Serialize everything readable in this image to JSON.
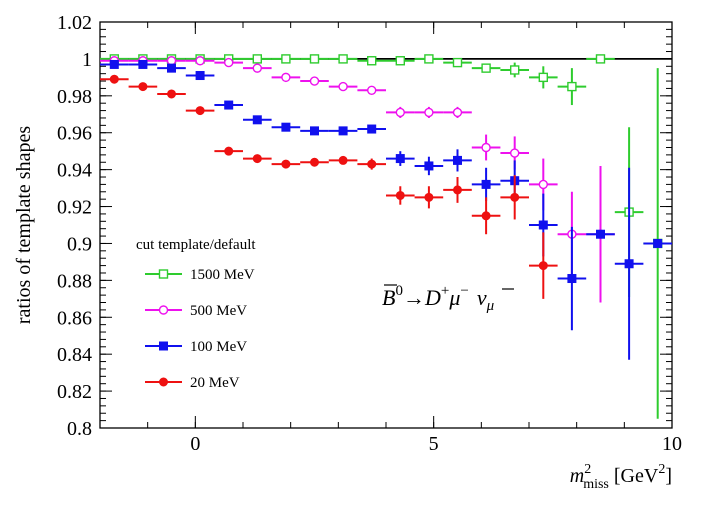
{
  "chart_data": {
    "type": "scatter",
    "title": "",
    "ylabel": "ratios of template shapes",
    "xlabel": {
      "main": "m",
      "sup": "2",
      "sub": "miss",
      "unit": "[GeV",
      "unit_sup": "2",
      "unit_close": "]"
    },
    "xlim": [
      -2,
      10
    ],
    "ylim": [
      0.8,
      1.02
    ],
    "x_ticks": [
      0,
      5,
      10
    ],
    "x_tick_labels": [
      "0",
      "5",
      "10"
    ],
    "y_ticks": [
      0.8,
      0.82,
      0.84,
      0.86,
      0.88,
      0.9,
      0.92,
      0.94,
      0.96,
      0.98,
      1,
      1.02
    ],
    "y_tick_labels": [
      "0.8",
      "0.82",
      "0.84",
      "0.86",
      "0.88",
      "0.9",
      "0.92",
      "0.94",
      "0.96",
      "0.98",
      "1",
      "1.02"
    ],
    "reference_line": 1,
    "legend_title": "cut template/default",
    "annotation": {
      "B": "B",
      "B_sup": "0",
      "arrow": "→",
      "D": "D",
      "D_sup": "+",
      "mu": "μ",
      "mu_sup": "−",
      "nu": "ν",
      "nu_sub": "μ"
    },
    "series": [
      {
        "name": "1500 MeV",
        "color": "#2ecc2e",
        "marker": "open-square",
        "points": [
          {
            "x": -1.7,
            "xerr": 0.3,
            "y": 1.0,
            "yerr": 0.0
          },
          {
            "x": -1.1,
            "xerr": 0.3,
            "y": 1.0,
            "yerr": 0.0
          },
          {
            "x": -0.5,
            "xerr": 0.3,
            "y": 1.0,
            "yerr": 0.0
          },
          {
            "x": 0.1,
            "xerr": 0.3,
            "y": 1.0,
            "yerr": 0.0
          },
          {
            "x": 0.7,
            "xerr": 0.3,
            "y": 1.0,
            "yerr": 0.0
          },
          {
            "x": 1.3,
            "xerr": 0.3,
            "y": 1.0,
            "yerr": 0.0
          },
          {
            "x": 1.9,
            "xerr": 0.3,
            "y": 1.0,
            "yerr": 0.0
          },
          {
            "x": 2.5,
            "xerr": 0.3,
            "y": 1.0,
            "yerr": 0.0
          },
          {
            "x": 3.1,
            "xerr": 0.3,
            "y": 1.0,
            "yerr": 0.0
          },
          {
            "x": 3.7,
            "xerr": 0.3,
            "y": 0.999,
            "yerr": 0.001
          },
          {
            "x": 4.3,
            "xerr": 0.3,
            "y": 0.999,
            "yerr": 0.001
          },
          {
            "x": 4.9,
            "xerr": 0.3,
            "y": 1.0,
            "yerr": 0.001
          },
          {
            "x": 5.5,
            "xerr": 0.3,
            "y": 0.998,
            "yerr": 0.002
          },
          {
            "x": 6.1,
            "xerr": 0.3,
            "y": 0.995,
            "yerr": 0.002
          },
          {
            "x": 6.7,
            "xerr": 0.3,
            "y": 0.994,
            "yerr": 0.004
          },
          {
            "x": 7.3,
            "xerr": 0.3,
            "y": 0.99,
            "yerr": 0.006
          },
          {
            "x": 7.9,
            "xerr": 0.3,
            "y": 0.985,
            "yerr": 0.01
          },
          {
            "x": 8.5,
            "xerr": 0.3,
            "y": 1.0,
            "yerr": 0.0
          },
          {
            "x": 9.1,
            "xerr": 0.3,
            "y": 0.917,
            "yerr": 0.046
          },
          {
            "x": 9.7,
            "xerr": 0.3,
            "y": 0.9,
            "yerr": 0.095
          }
        ]
      },
      {
        "name": "500 MeV",
        "color": "#ee11ee",
        "marker": "open-circle",
        "points": [
          {
            "x": -1.7,
            "xerr": 0.3,
            "y": 0.999,
            "yerr": 0.0
          },
          {
            "x": -1.1,
            "xerr": 0.3,
            "y": 0.999,
            "yerr": 0.0
          },
          {
            "x": -0.5,
            "xerr": 0.3,
            "y": 0.999,
            "yerr": 0.0
          },
          {
            "x": 0.1,
            "xerr": 0.3,
            "y": 0.999,
            "yerr": 0.0
          },
          {
            "x": 0.7,
            "xerr": 0.3,
            "y": 0.998,
            "yerr": 0.0
          },
          {
            "x": 1.3,
            "xerr": 0.3,
            "y": 0.995,
            "yerr": 0.0
          },
          {
            "x": 1.9,
            "xerr": 0.3,
            "y": 0.99,
            "yerr": 0.0
          },
          {
            "x": 2.5,
            "xerr": 0.3,
            "y": 0.988,
            "yerr": 0.0
          },
          {
            "x": 3.1,
            "xerr": 0.3,
            "y": 0.985,
            "yerr": 0.0
          },
          {
            "x": 3.7,
            "xerr": 0.3,
            "y": 0.983,
            "yerr": 0.0
          },
          {
            "x": 4.3,
            "xerr": 0.3,
            "y": 0.971,
            "yerr": 0.003
          },
          {
            "x": 4.9,
            "xerr": 0.3,
            "y": 0.971,
            "yerr": 0.003
          },
          {
            "x": 5.5,
            "xerr": 0.3,
            "y": 0.971,
            "yerr": 0.003
          },
          {
            "x": 6.1,
            "xerr": 0.3,
            "y": 0.952,
            "yerr": 0.007
          },
          {
            "x": 6.7,
            "xerr": 0.3,
            "y": 0.949,
            "yerr": 0.009
          },
          {
            "x": 7.3,
            "xerr": 0.3,
            "y": 0.932,
            "yerr": 0.014
          },
          {
            "x": 7.9,
            "xerr": 0.3,
            "y": 0.905,
            "yerr": 0.023
          },
          {
            "x": 8.5,
            "xerr": 0.3,
            "y": 0.905,
            "yerr": 0.037
          }
        ]
      },
      {
        "name": "100 MeV",
        "color": "#1010ee",
        "marker": "filled-square",
        "points": [
          {
            "x": -1.7,
            "xerr": 0.3,
            "y": 0.997,
            "yerr": 0.0
          },
          {
            "x": -1.1,
            "xerr": 0.3,
            "y": 0.997,
            "yerr": 0.0
          },
          {
            "x": -0.5,
            "xerr": 0.3,
            "y": 0.995,
            "yerr": 0.0
          },
          {
            "x": 0.1,
            "xerr": 0.3,
            "y": 0.991,
            "yerr": 0.0
          },
          {
            "x": 0.7,
            "xerr": 0.3,
            "y": 0.975,
            "yerr": 0.0
          },
          {
            "x": 1.3,
            "xerr": 0.3,
            "y": 0.967,
            "yerr": 0.0
          },
          {
            "x": 1.9,
            "xerr": 0.3,
            "y": 0.963,
            "yerr": 0.0
          },
          {
            "x": 2.5,
            "xerr": 0.3,
            "y": 0.961,
            "yerr": 0.0
          },
          {
            "x": 3.1,
            "xerr": 0.3,
            "y": 0.961,
            "yerr": 0.0
          },
          {
            "x": 3.7,
            "xerr": 0.3,
            "y": 0.962,
            "yerr": 0.002
          },
          {
            "x": 4.3,
            "xerr": 0.3,
            "y": 0.946,
            "yerr": 0.004
          },
          {
            "x": 4.9,
            "xerr": 0.3,
            "y": 0.942,
            "yerr": 0.005
          },
          {
            "x": 5.5,
            "xerr": 0.3,
            "y": 0.945,
            "yerr": 0.006
          },
          {
            "x": 6.1,
            "xerr": 0.3,
            "y": 0.932,
            "yerr": 0.009
          },
          {
            "x": 6.7,
            "xerr": 0.3,
            "y": 0.934,
            "yerr": 0.011
          },
          {
            "x": 7.3,
            "xerr": 0.3,
            "y": 0.91,
            "yerr": 0.017
          },
          {
            "x": 7.9,
            "xerr": 0.3,
            "y": 0.881,
            "yerr": 0.028
          },
          {
            "x": 8.5,
            "xerr": 0.3,
            "y": 0.905,
            "yerr": 0.0
          },
          {
            "x": 9.1,
            "xerr": 0.3,
            "y": 0.889,
            "yerr": 0.052
          },
          {
            "x": 9.7,
            "xerr": 0.3,
            "y": 0.9,
            "yerr": 0.0
          }
        ]
      },
      {
        "name": "20 MeV",
        "color": "#ee1111",
        "marker": "filled-circle",
        "points": [
          {
            "x": -1.7,
            "xerr": 0.3,
            "y": 0.989,
            "yerr": 0.0
          },
          {
            "x": -1.1,
            "xerr": 0.3,
            "y": 0.985,
            "yerr": 0.0
          },
          {
            "x": -0.5,
            "xerr": 0.3,
            "y": 0.981,
            "yerr": 0.0
          },
          {
            "x": 0.1,
            "xerr": 0.3,
            "y": 0.972,
            "yerr": 0.0
          },
          {
            "x": 0.7,
            "xerr": 0.3,
            "y": 0.95,
            "yerr": 0.0
          },
          {
            "x": 1.3,
            "xerr": 0.3,
            "y": 0.946,
            "yerr": 0.0
          },
          {
            "x": 1.9,
            "xerr": 0.3,
            "y": 0.943,
            "yerr": 0.0
          },
          {
            "x": 2.5,
            "xerr": 0.3,
            "y": 0.944,
            "yerr": 0.0
          },
          {
            "x": 3.1,
            "xerr": 0.3,
            "y": 0.945,
            "yerr": 0.0
          },
          {
            "x": 3.7,
            "xerr": 0.3,
            "y": 0.943,
            "yerr": 0.003
          },
          {
            "x": 4.3,
            "xerr": 0.3,
            "y": 0.926,
            "yerr": 0.005
          },
          {
            "x": 4.9,
            "xerr": 0.3,
            "y": 0.925,
            "yerr": 0.006
          },
          {
            "x": 5.5,
            "xerr": 0.3,
            "y": 0.929,
            "yerr": 0.007
          },
          {
            "x": 6.1,
            "xerr": 0.3,
            "y": 0.915,
            "yerr": 0.01
          },
          {
            "x": 6.7,
            "xerr": 0.3,
            "y": 0.925,
            "yerr": 0.012
          },
          {
            "x": 7.3,
            "xerr": 0.3,
            "y": 0.888,
            "yerr": 0.018
          }
        ]
      }
    ]
  }
}
